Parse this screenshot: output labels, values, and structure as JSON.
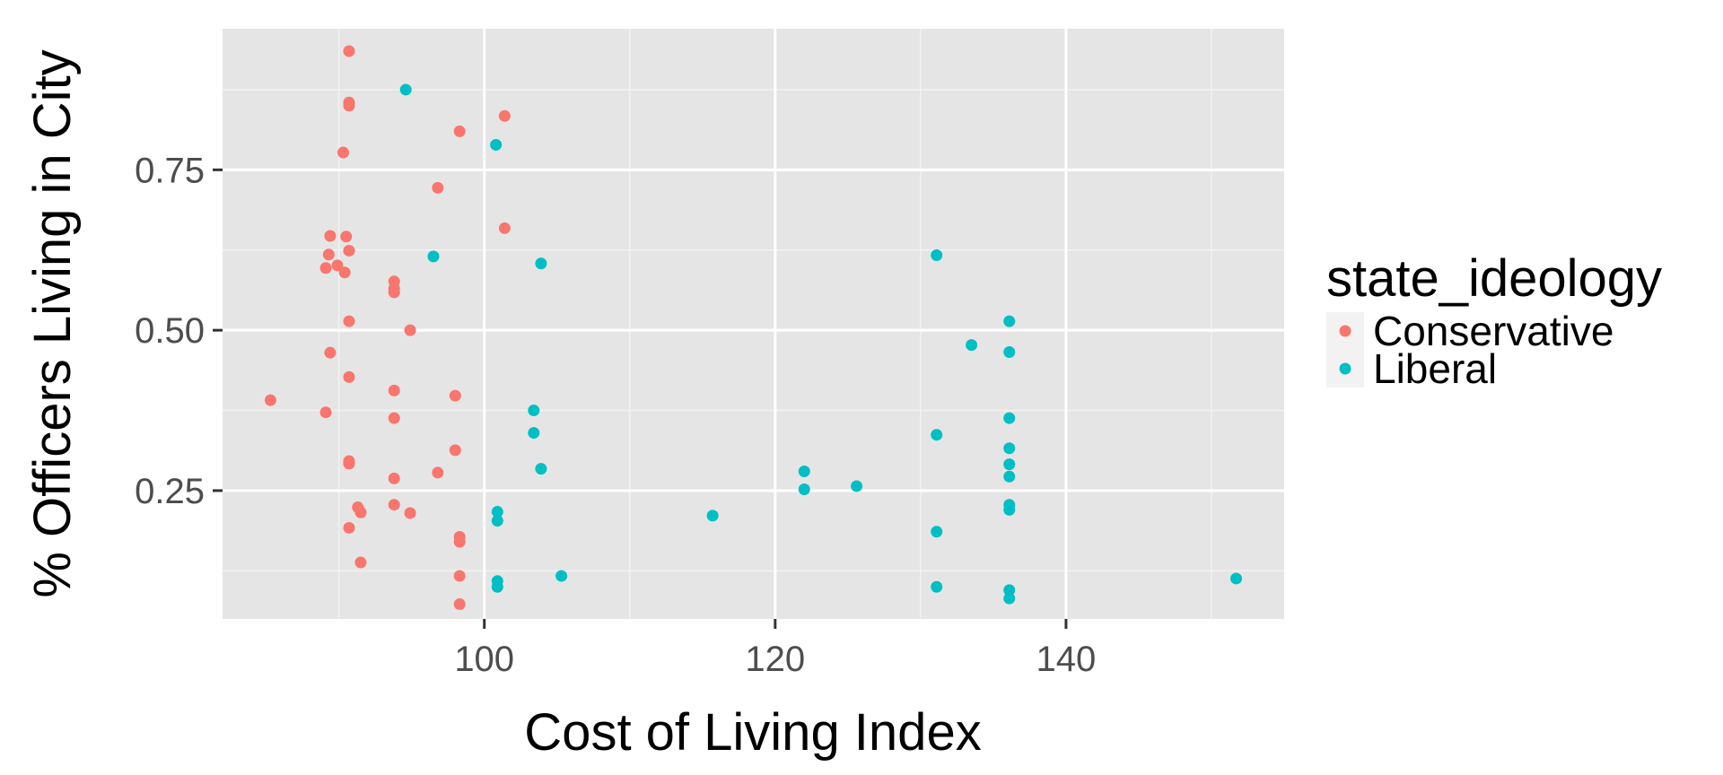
{
  "chart_data": {
    "type": "scatter",
    "xlabel": "Cost of Living Index",
    "ylabel": "% Officers Living in City",
    "xlim": [
      82,
      155
    ],
    "ylim": [
      0.05,
      0.97
    ],
    "x_ticks": [
      {
        "value": 100,
        "label": "100"
      },
      {
        "value": 120,
        "label": "120"
      },
      {
        "value": 140,
        "label": "140"
      }
    ],
    "y_ticks": [
      {
        "value": 0.25,
        "label": "0.25"
      },
      {
        "value": 0.5,
        "label": "0.50"
      },
      {
        "value": 0.75,
        "label": "0.75"
      }
    ],
    "background": "#e5e5e5",
    "grid": true,
    "legend": {
      "title": "state_ideology",
      "position": "right"
    },
    "series": [
      {
        "name": "Conservative",
        "color": "#f8766d",
        "points": [
          [
            90.7,
            0.935
          ],
          [
            90.7,
            0.855
          ],
          [
            90.7,
            0.85
          ],
          [
            90.3,
            0.777
          ],
          [
            98.3,
            0.81
          ],
          [
            101.4,
            0.834
          ],
          [
            96.8,
            0.722
          ],
          [
            101.4,
            0.659
          ],
          [
            89.4,
            0.647
          ],
          [
            90.5,
            0.646
          ],
          [
            90.7,
            0.624
          ],
          [
            89.3,
            0.618
          ],
          [
            89.9,
            0.601
          ],
          [
            89.1,
            0.597
          ],
          [
            90.4,
            0.59
          ],
          [
            93.8,
            0.576
          ],
          [
            93.8,
            0.565
          ],
          [
            93.8,
            0.559
          ],
          [
            90.7,
            0.514
          ],
          [
            94.9,
            0.5
          ],
          [
            89.4,
            0.465
          ],
          [
            90.7,
            0.427
          ],
          [
            93.8,
            0.406
          ],
          [
            98.0,
            0.398
          ],
          [
            85.3,
            0.391
          ],
          [
            89.1,
            0.372
          ],
          [
            93.8,
            0.363
          ],
          [
            98.0,
            0.313
          ],
          [
            90.7,
            0.296
          ],
          [
            90.7,
            0.292
          ],
          [
            96.8,
            0.278
          ],
          [
            93.8,
            0.269
          ],
          [
            93.8,
            0.228
          ],
          [
            91.3,
            0.224
          ],
          [
            91.5,
            0.216
          ],
          [
            94.9,
            0.215
          ],
          [
            90.7,
            0.192
          ],
          [
            98.3,
            0.178
          ],
          [
            98.3,
            0.17
          ],
          [
            91.5,
            0.138
          ],
          [
            98.3,
            0.117
          ],
          [
            98.3,
            0.073
          ]
        ]
      },
      {
        "name": "Liberal",
        "color": "#00bfc4",
        "points": [
          [
            94.6,
            0.875
          ],
          [
            100.8,
            0.789
          ],
          [
            96.5,
            0.615
          ],
          [
            103.9,
            0.604
          ],
          [
            103.4,
            0.375
          ],
          [
            103.4,
            0.34
          ],
          [
            103.9,
            0.284
          ],
          [
            100.9,
            0.217
          ],
          [
            100.9,
            0.203
          ],
          [
            105.3,
            0.117
          ],
          [
            100.9,
            0.109
          ],
          [
            100.9,
            0.1
          ],
          [
            115.7,
            0.211
          ],
          [
            122.0,
            0.28
          ],
          [
            122.0,
            0.252
          ],
          [
            125.6,
            0.257
          ],
          [
            131.1,
            0.617
          ],
          [
            133.5,
            0.477
          ],
          [
            131.1,
            0.337
          ],
          [
            131.1,
            0.186
          ],
          [
            131.1,
            0.1
          ],
          [
            136.1,
            0.514
          ],
          [
            136.1,
            0.466
          ],
          [
            136.1,
            0.363
          ],
          [
            136.1,
            0.316
          ],
          [
            136.1,
            0.291
          ],
          [
            136.1,
            0.272
          ],
          [
            136.1,
            0.228
          ],
          [
            136.1,
            0.22
          ],
          [
            136.1,
            0.095
          ],
          [
            136.1,
            0.082
          ],
          [
            151.7,
            0.113
          ]
        ]
      }
    ]
  }
}
